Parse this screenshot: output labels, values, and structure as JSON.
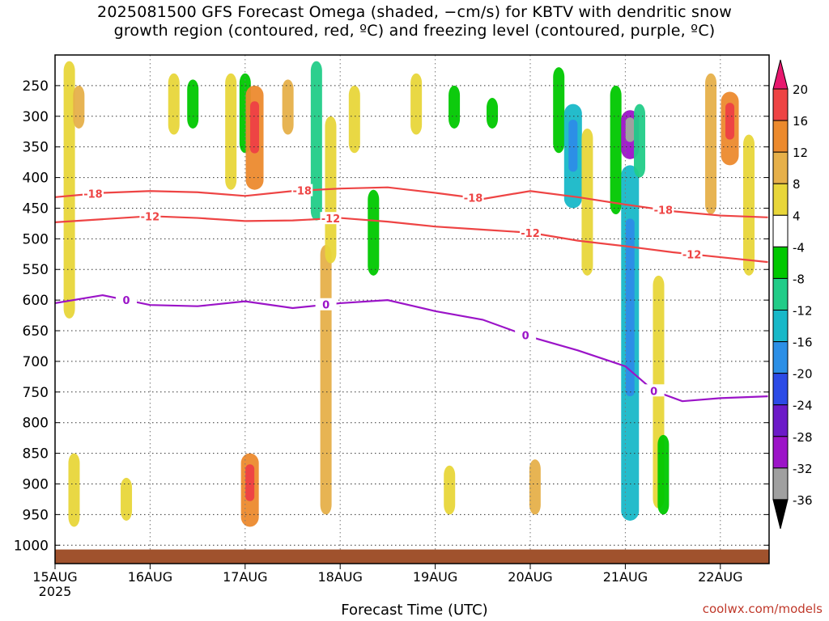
{
  "title_line1": "2025081500 GFS Forecast Omega (shaded, −cm/s) for KBTV with dendritic snow",
  "title_line2": "growth region (contoured, red, ºC) and freezing level (contoured, purple, ºC)",
  "credit": "coolwx.com/models",
  "chart_data": {
    "type": "heatmap",
    "title": "2025081500 GFS Forecast Omega (shaded, −cm/s) for KBTV with dendritic snow growth region (contoured, red, ºC) and freezing level (contoured, purple, ºC)",
    "xlabel": "Forecast Time (UTC)",
    "ylabel": "",
    "x_ticks": [
      "15AUG",
      "16AUG",
      "17AUG",
      "18AUG",
      "19AUG",
      "20AUG",
      "21AUG",
      "22AUG"
    ],
    "x_year_label": "2025",
    "x_range_days": [
      0,
      7.5
    ],
    "y_axis": "pressure (hPa), decreasing upward",
    "y_ticks": [
      250,
      300,
      350,
      400,
      450,
      500,
      550,
      600,
      650,
      700,
      750,
      800,
      850,
      900,
      950,
      1000
    ],
    "y_range": [
      1030,
      200
    ],
    "grid": true,
    "colorbar": {
      "levels": [
        20,
        16,
        12,
        8,
        4,
        -4,
        -8,
        -12,
        -16,
        -20,
        -24,
        -28,
        -32,
        -36
      ],
      "colors": [
        "#f03c5a",
        "#ee4444",
        "#ec8a2e",
        "#e6b04a",
        "#e8d63a",
        "#ffffff",
        "#00c800",
        "#22cc88",
        "#18b8c8",
        "#2c8fe6",
        "#2c4be6",
        "#6c1ac8",
        "#9c14c8",
        "#a0a0a0",
        "#000000"
      ],
      "top_arrow_color": "#e8186e",
      "bottom_arrow_color": "#000000"
    },
    "series": [
      {
        "name": "-18",
        "color": "#ee4444",
        "label_text": "-18",
        "labels_at_days": [
          0.4,
          2.6,
          4.4,
          6.4
        ],
        "points": [
          [
            0,
            432
          ],
          [
            0.5,
            425
          ],
          [
            1.0,
            422
          ],
          [
            1.5,
            424
          ],
          [
            2.0,
            430
          ],
          [
            2.5,
            422
          ],
          [
            3.0,
            418
          ],
          [
            3.5,
            416
          ],
          [
            4.0,
            425
          ],
          [
            4.5,
            435
          ],
          [
            5.0,
            422
          ],
          [
            5.5,
            432
          ],
          [
            6.0,
            444
          ],
          [
            6.5,
            455
          ],
          [
            7.0,
            462
          ],
          [
            7.5,
            465
          ]
        ]
      },
      {
        "name": "-12",
        "color": "#ee4444",
        "label_text": "-12",
        "labels_at_days": [
          1.0,
          2.9,
          5.0,
          6.7
        ],
        "points": [
          [
            0,
            473
          ],
          [
            0.5,
            468
          ],
          [
            1.0,
            463
          ],
          [
            1.5,
            466
          ],
          [
            2.0,
            471
          ],
          [
            2.5,
            470
          ],
          [
            3.0,
            466
          ],
          [
            3.5,
            472
          ],
          [
            4.0,
            480
          ],
          [
            4.5,
            485
          ],
          [
            5.0,
            490
          ],
          [
            5.5,
            503
          ],
          [
            6.0,
            512
          ],
          [
            6.5,
            522
          ],
          [
            7.0,
            530
          ],
          [
            7.5,
            538
          ]
        ]
      },
      {
        "name": "0",
        "color": "#9b14c8",
        "label_text": "0",
        "labels_at_days": [
          0.75,
          2.85,
          4.95,
          6.3
        ],
        "points": [
          [
            0,
            605
          ],
          [
            0.5,
            592
          ],
          [
            1.0,
            608
          ],
          [
            1.5,
            610
          ],
          [
            2.0,
            602
          ],
          [
            2.5,
            613
          ],
          [
            3.0,
            605
          ],
          [
            3.5,
            600
          ],
          [
            4.0,
            618
          ],
          [
            4.5,
            632
          ],
          [
            5.0,
            660
          ],
          [
            5.5,
            682
          ],
          [
            6.0,
            708
          ],
          [
            6.3,
            748
          ],
          [
            6.6,
            765
          ],
          [
            7.0,
            760
          ],
          [
            7.5,
            757
          ]
        ]
      }
    ],
    "omega_blobs": [
      {
        "day": 0.15,
        "pmin": 210,
        "pmax": 630,
        "v": 4
      },
      {
        "day": 0.25,
        "pmin": 250,
        "pmax": 320,
        "v": 8
      },
      {
        "day": 0.2,
        "pmin": 850,
        "pmax": 970,
        "v": 4
      },
      {
        "day": 0.75,
        "pmin": 890,
        "pmax": 960,
        "v": 6
      },
      {
        "day": 1.25,
        "pmin": 230,
        "pmax": 330,
        "v": 4
      },
      {
        "day": 1.45,
        "pmin": 240,
        "pmax": 320,
        "v": -6
      },
      {
        "day": 1.85,
        "pmin": 230,
        "pmax": 420,
        "v": 6
      },
      {
        "day": 2.0,
        "pmin": 230,
        "pmax": 360,
        "v": -6
      },
      {
        "day": 2.05,
        "pmin": 850,
        "pmax": 970,
        "v": 12
      },
      {
        "day": 2.1,
        "pmin": 250,
        "pmax": 420,
        "v": 12
      },
      {
        "day": 2.45,
        "pmin": 240,
        "pmax": 330,
        "v": 8
      },
      {
        "day": 2.75,
        "pmin": 210,
        "pmax": 470,
        "v": -10
      },
      {
        "day": 2.85,
        "pmin": 510,
        "pmax": 950,
        "v": 10
      },
      {
        "day": 2.9,
        "pmin": 300,
        "pmax": 540,
        "v": 6
      },
      {
        "day": 3.35,
        "pmin": 420,
        "pmax": 560,
        "v": -6
      },
      {
        "day": 3.15,
        "pmin": 250,
        "pmax": 360,
        "v": 4
      },
      {
        "day": 3.8,
        "pmin": 230,
        "pmax": 330,
        "v": 4
      },
      {
        "day": 4.15,
        "pmin": 870,
        "pmax": 950,
        "v": 4
      },
      {
        "day": 4.2,
        "pmin": 250,
        "pmax": 320,
        "v": -6
      },
      {
        "day": 4.6,
        "pmin": 270,
        "pmax": 320,
        "v": -6
      },
      {
        "day": 5.05,
        "pmin": 860,
        "pmax": 950,
        "v": 8
      },
      {
        "day": 5.3,
        "pmin": 220,
        "pmax": 360,
        "v": -6
      },
      {
        "day": 5.45,
        "pmin": 280,
        "pmax": 450,
        "v": -14
      },
      {
        "day": 5.6,
        "pmin": 320,
        "pmax": 560,
        "v": 4
      },
      {
        "day": 5.9,
        "pmin": 250,
        "pmax": 460,
        "v": -6
      },
      {
        "day": 6.05,
        "pmin": 290,
        "pmax": 370,
        "v": -30
      },
      {
        "day": 6.05,
        "pmin": 380,
        "pmax": 960,
        "v": -14
      },
      {
        "day": 6.15,
        "pmin": 280,
        "pmax": 400,
        "v": -10
      },
      {
        "day": 6.35,
        "pmin": 560,
        "pmax": 940,
        "v": 4
      },
      {
        "day": 6.4,
        "pmin": 820,
        "pmax": 950,
        "v": -8
      },
      {
        "day": 6.9,
        "pmin": 230,
        "pmax": 460,
        "v": 10
      },
      {
        "day": 7.1,
        "pmin": 260,
        "pmax": 380,
        "v": 12
      },
      {
        "day": 7.3,
        "pmin": 330,
        "pmax": 560,
        "v": 6
      }
    ]
  }
}
